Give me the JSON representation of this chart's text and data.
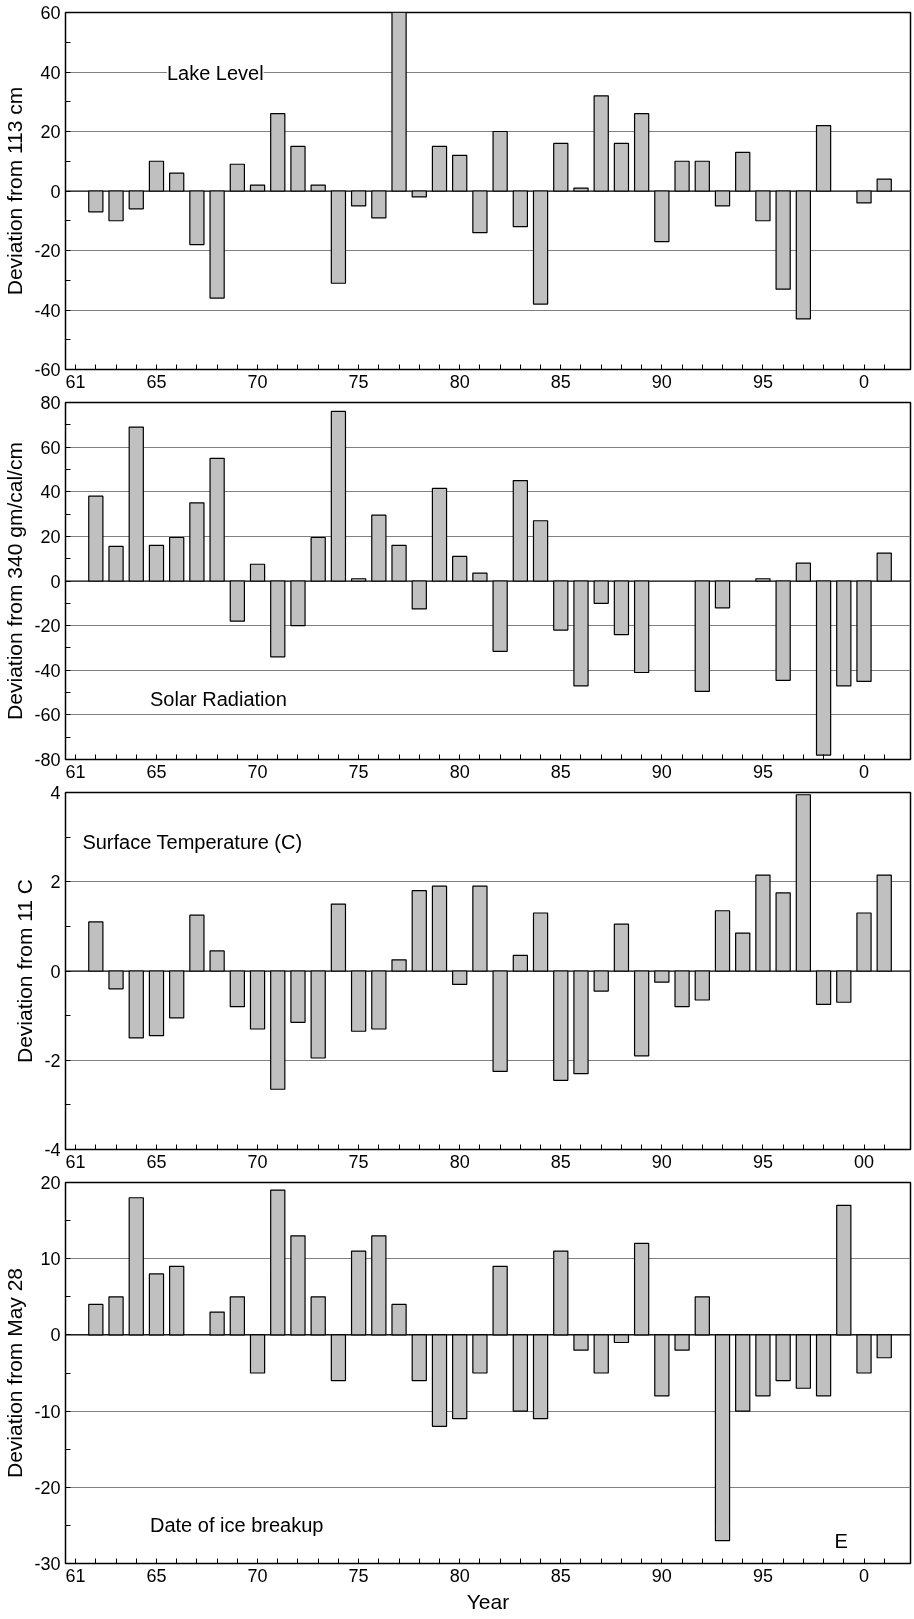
{
  "chart_data": [
    {
      "type": "bar",
      "ylabel": "Deviation from 113 cm",
      "annotations": [
        "Lake Level"
      ],
      "grid": "y",
      "color": "#c0c0c0",
      "categories": [
        "61",
        null,
        null,
        null,
        "65",
        null,
        null,
        null,
        null,
        "70",
        null,
        null,
        null,
        null,
        "75",
        null,
        null,
        null,
        null,
        "80",
        null,
        null,
        null,
        null,
        "85",
        null,
        null,
        null,
        null,
        "90",
        null,
        null,
        null,
        null,
        "95",
        null,
        null,
        null,
        null,
        "0",
        null
      ],
      "values": [
        null,
        -7,
        -10,
        -6,
        10,
        6,
        -18,
        -36,
        9,
        2,
        26,
        15,
        2,
        -31,
        -5,
        -9,
        60,
        -2,
        15,
        12,
        -14,
        20,
        -12,
        -38,
        16,
        1,
        32,
        16,
        26,
        -17,
        10,
        10,
        -5,
        13,
        -10,
        -33,
        -43,
        22,
        null,
        -4,
        4
      ],
      "ref_lines": [
        {
          "axis": "y",
          "value": 0,
          "color": "#000000"
        }
      ],
      "ylim": [
        -60,
        60
      ],
      "yticks": [
        -60,
        {
          "value": -50,
          "label": null
        },
        -40,
        {
          "value": -30,
          "label": null
        },
        -20,
        {
          "value": -10,
          "label": null
        },
        0,
        {
          "value": 10,
          "label": null
        },
        20,
        {
          "value": 30,
          "label": null
        },
        40,
        {
          "value": 50,
          "label": null
        },
        60
      ]
    },
    {
      "type": "bar",
      "ylabel": "Deviation from 340 gm/cal/cm",
      "annotations": [
        "Solar Radiation"
      ],
      "grid": "y",
      "color": "#c0c0c0",
      "categories": [
        "61",
        null,
        null,
        null,
        "65",
        null,
        null,
        null,
        null,
        "70",
        null,
        null,
        null,
        null,
        "75",
        null,
        null,
        null,
        null,
        "80",
        null,
        null,
        null,
        null,
        "85",
        null,
        null,
        null,
        null,
        "90",
        null,
        null,
        null,
        null,
        "95",
        null,
        null,
        null,
        null,
        "0",
        null
      ],
      "values": [
        null,
        38,
        15.5,
        69,
        16,
        19.5,
        35,
        55,
        -18,
        7.5,
        -34,
        -20,
        19.5,
        76,
        1,
        29.5,
        16,
        -12.5,
        41.5,
        11,
        3.5,
        -31.5,
        45,
        27,
        -22,
        -47,
        -10,
        -24,
        -41,
        null,
        null,
        -49.5,
        -12,
        null,
        1,
        -44.5,
        8,
        -78,
        -47,
        -45,
        12.5
      ],
      "ref_lines": [
        {
          "axis": "y",
          "value": 0,
          "color": "#000000"
        }
      ],
      "ylim": [
        -80,
        80
      ],
      "yticks": [
        -80,
        {
          "value": -70,
          "label": null
        },
        -60,
        {
          "value": -50,
          "label": null
        },
        -40,
        {
          "value": -30,
          "label": null
        },
        -20,
        {
          "value": -10,
          "label": null
        },
        0,
        {
          "value": 10,
          "label": null
        },
        20,
        {
          "value": 30,
          "label": null
        },
        40,
        {
          "value": 50,
          "label": null
        },
        60,
        {
          "value": 70,
          "label": null
        },
        80
      ]
    },
    {
      "type": "bar",
      "ylabel": "Deviation from 11 C",
      "annotations": [
        "Surface Temperature (C)"
      ],
      "grid": "y",
      "color": "#c0c0c0",
      "categories": [
        "61",
        null,
        null,
        null,
        "65",
        null,
        null,
        null,
        null,
        "70",
        null,
        null,
        null,
        null,
        "75",
        null,
        null,
        null,
        null,
        "80",
        null,
        null,
        null,
        null,
        "85",
        null,
        null,
        null,
        null,
        "90",
        null,
        null,
        null,
        null,
        "95",
        null,
        null,
        null,
        null,
        "00",
        null
      ],
      "values": [
        null,
        1.1,
        -0.4,
        -1.5,
        -1.45,
        -1.05,
        1.25,
        0.45,
        -0.8,
        -1.3,
        -2.65,
        -1.15,
        -1.95,
        1.5,
        -1.35,
        -1.3,
        0.25,
        1.8,
        1.9,
        -0.3,
        1.9,
        -2.25,
        0.35,
        1.3,
        -2.45,
        -2.3,
        -0.45,
        1.05,
        -1.9,
        -0.25,
        -0.8,
        -0.65,
        1.35,
        0.85,
        2.15,
        1.75,
        3.95,
        -0.75,
        -0.7,
        1.3,
        2.15
      ],
      "ref_lines": [
        {
          "axis": "y",
          "value": 0,
          "color": "#000000"
        }
      ],
      "ylim": [
        -4,
        4
      ],
      "yticks": [
        -4,
        {
          "value": -3,
          "label": null
        },
        -2,
        {
          "value": -1,
          "label": null
        },
        0,
        {
          "value": 1,
          "label": null
        },
        2,
        {
          "value": 3,
          "label": null
        },
        4
      ]
    },
    {
      "type": "bar",
      "xlabel": "Year",
      "ylabel": "Deviation from May 28",
      "annotations": [
        "Date of ice breakup",
        "E"
      ],
      "grid": "y",
      "color": "#c0c0c0",
      "categories": [
        "61",
        null,
        null,
        null,
        "65",
        null,
        null,
        null,
        null,
        "70",
        null,
        null,
        null,
        null,
        "75",
        null,
        null,
        null,
        null,
        "80",
        null,
        null,
        null,
        null,
        "85",
        null,
        null,
        null,
        null,
        "90",
        null,
        null,
        null,
        null,
        "95",
        null,
        null,
        null,
        null,
        "0",
        null
      ],
      "values": [
        null,
        4,
        5,
        18,
        8,
        9,
        null,
        3,
        5,
        -5,
        19,
        13,
        5,
        -6,
        11,
        13,
        4,
        -6,
        -12,
        -11,
        -5,
        9,
        -10,
        -11,
        11,
        -2,
        -5,
        -1,
        12,
        -8,
        -2,
        5,
        -27,
        -10,
        -8,
        -6,
        -7,
        -8,
        17,
        -5,
        -3
      ],
      "ref_lines": [
        {
          "axis": "y",
          "value": 0,
          "color": "#000000"
        }
      ],
      "ylim": [
        -30,
        20
      ],
      "yticks": [
        -30,
        {
          "value": -25,
          "label": null
        },
        -20,
        {
          "value": -15,
          "label": null
        },
        -10,
        {
          "value": -5,
          "label": null
        },
        0,
        {
          "value": 5,
          "label": null
        },
        10,
        {
          "value": 15,
          "label": null
        },
        20
      ]
    }
  ]
}
